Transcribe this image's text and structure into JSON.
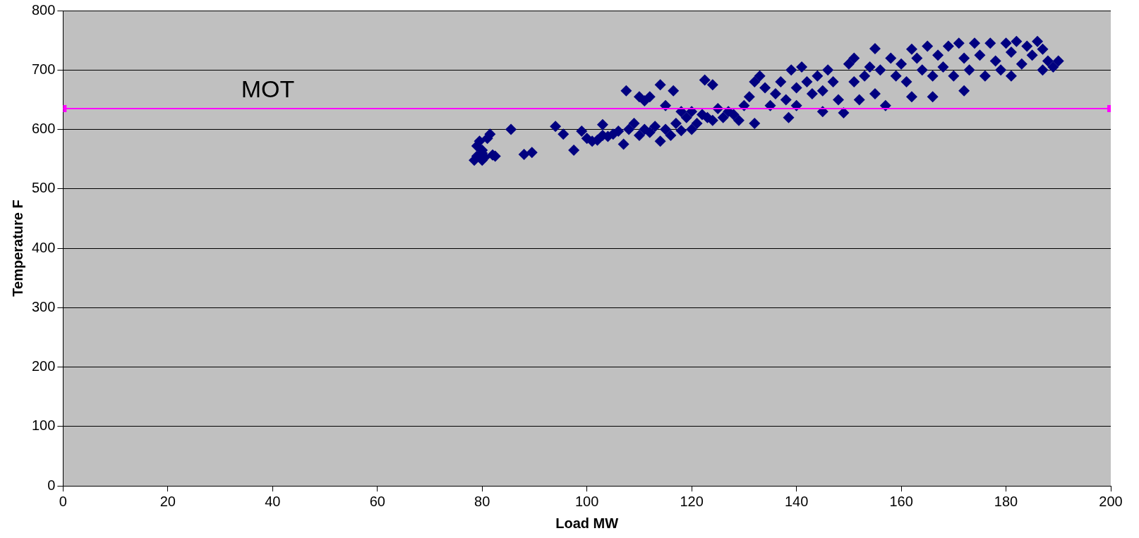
{
  "chart_data": {
    "type": "scatter",
    "xlabel": "Load MW",
    "ylabel": "Temperature F",
    "xlim": [
      0,
      200
    ],
    "xticks": [
      0,
      20,
      40,
      60,
      80,
      100,
      120,
      140,
      160,
      180,
      200
    ],
    "ylim": [
      0,
      800
    ],
    "yticks": [
      0,
      100,
      200,
      300,
      400,
      500,
      600,
      700,
      800
    ],
    "grid": "y",
    "legend": false,
    "marker": "diamond",
    "series": [
      {
        "color": "#000080",
        "x": [
          78.5,
          79,
          79.5,
          80,
          80,
          80.5,
          81,
          81.5,
          82,
          82.5,
          79,
          80,
          85.5,
          88,
          89.5,
          94,
          95.5,
          97.5,
          99,
          100,
          101,
          102,
          103,
          103,
          104,
          105,
          106,
          107,
          107.5,
          108,
          109,
          110,
          110,
          111,
          111,
          112,
          112,
          113,
          114,
          114,
          115,
          115,
          116,
          116.5,
          117,
          118,
          118,
          119,
          120,
          120,
          121,
          122,
          122.5,
          123,
          124,
          124,
          125,
          126,
          127,
          128,
          129,
          130,
          131,
          132,
          132,
          133,
          134,
          135,
          136,
          137,
          138,
          138.5,
          139,
          140,
          140,
          141,
          142,
          143,
          144,
          145,
          145,
          146,
          147,
          148,
          149,
          150,
          151,
          151,
          152,
          153,
          154,
          155,
          155,
          156,
          157,
          158,
          159,
          160,
          161,
          162,
          162,
          163,
          164,
          165,
          166,
          166,
          167,
          168,
          169,
          170,
          171,
          172,
          172,
          173,
          174,
          175,
          176,
          177,
          178,
          179,
          180,
          181,
          181,
          182,
          183,
          184,
          185,
          186,
          187,
          187,
          188,
          189,
          190
        ],
        "values": [
          548,
          555,
          580,
          565,
          548,
          553,
          585,
          592,
          557,
          555,
          572,
          560,
          600,
          558,
          561,
          605,
          592,
          565,
          597,
          585,
          580,
          582,
          590,
          608,
          588,
          592,
          597,
          575,
          665,
          600,
          610,
          655,
          590,
          648,
          600,
          595,
          655,
          605,
          675,
          580,
          640,
          600,
          590,
          665,
          610,
          630,
          598,
          620,
          630,
          600,
          610,
          625,
          683,
          620,
          675,
          615,
          635,
          620,
          630,
          625,
          615,
          640,
          655,
          610,
          680,
          690,
          670,
          640,
          660,
          680,
          650,
          620,
          700,
          670,
          640,
          705,
          680,
          660,
          690,
          665,
          630,
          700,
          680,
          650,
          628,
          710,
          680,
          720,
          650,
          690,
          705,
          736,
          660,
          700,
          640,
          720,
          690,
          710,
          680,
          735,
          655,
          720,
          700,
          740,
          690,
          655,
          725,
          705,
          740,
          690,
          745,
          720,
          665,
          700,
          745,
          725,
          690,
          745,
          715,
          700,
          745,
          730,
          690,
          748,
          710,
          740,
          725,
          748,
          700,
          735,
          715,
          705,
          715
        ]
      },
      {
        "type": "line",
        "name": "MOT",
        "color": "#ff00ff",
        "marker": "square",
        "x": [
          0,
          200
        ],
        "values": [
          635,
          635
        ]
      }
    ]
  }
}
